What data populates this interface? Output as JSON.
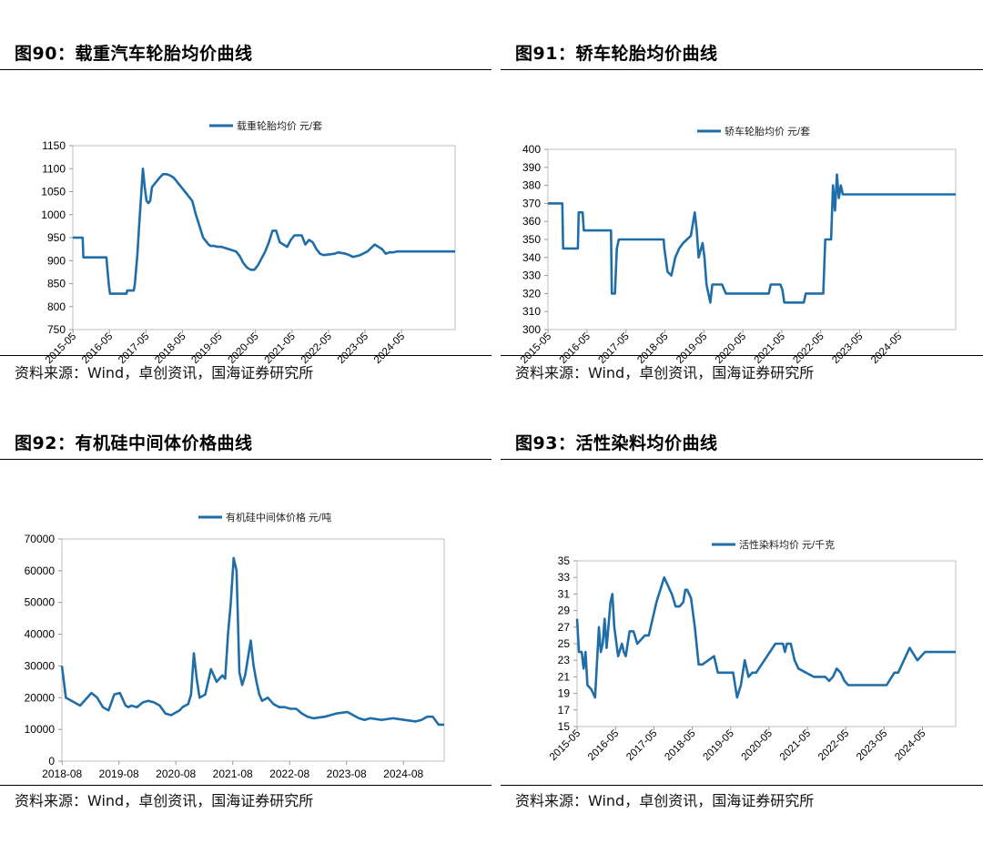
{
  "panels": [
    {
      "title": "图90：载重汽车轮胎均价曲线",
      "source": "资料来源：Wind，卓创资讯，国海证券研究所",
      "chart_data": {
        "type": "line",
        "legend": "载重轮胎均价 元/套",
        "legend_position": "top-center",
        "series_color": "#1f6ea8",
        "grid": false,
        "x_ticks": [
          "2015-05",
          "2016-05",
          "2017-05",
          "2018-05",
          "2019-05",
          "2020-05",
          "2021-05",
          "2022-05",
          "2023-05",
          "2024-05"
        ],
        "x_range": [
          2015.33,
          2025.8
        ],
        "y_ticks": [
          750,
          800,
          850,
          900,
          950,
          1000,
          1050,
          1100,
          1150
        ],
        "ylim": [
          750,
          1150
        ],
        "x": [
          2015.33,
          2015.6,
          2015.62,
          2016.25,
          2016.28,
          2016.32,
          2016.35,
          2016.4,
          2016.8,
          2016.82,
          2017.0,
          2017.03,
          2017.1,
          2017.15,
          2017.2,
          2017.25,
          2017.3,
          2017.35,
          2017.4,
          2017.45,
          2017.5,
          2017.6,
          2017.7,
          2017.8,
          2017.9,
          2018.0,
          2018.1,
          2018.2,
          2018.3,
          2018.4,
          2018.5,
          2018.6,
          2018.7,
          2018.8,
          2018.9,
          2019.0,
          2019.05,
          2019.1,
          2019.2,
          2019.3,
          2019.4,
          2019.6,
          2019.8,
          2019.9,
          2020.0,
          2020.1,
          2020.2,
          2020.3,
          2020.4,
          2020.6,
          2020.7,
          2020.8,
          2020.9,
          2021.0,
          2021.1,
          2021.2,
          2021.3,
          2021.4,
          2021.6,
          2021.7,
          2021.8,
          2021.9,
          2022.0,
          2022.1,
          2022.2,
          2022.5,
          2022.6,
          2022.8,
          2022.9,
          2023.0,
          2023.2,
          2023.4,
          2023.6,
          2023.8,
          2023.9,
          2024.0,
          2024.1,
          2024.2,
          2024.3,
          2024.5,
          2024.7,
          2025.8
        ],
        "y": [
          950,
          950,
          907,
          907,
          880,
          845,
          828,
          828,
          828,
          835,
          835,
          850,
          915,
          980,
          1040,
          1100,
          1060,
          1030,
          1025,
          1030,
          1060,
          1070,
          1080,
          1088,
          1088,
          1085,
          1080,
          1070,
          1060,
          1050,
          1040,
          1030,
          1000,
          975,
          950,
          940,
          935,
          932,
          932,
          930,
          930,
          925,
          920,
          910,
          895,
          885,
          880,
          880,
          890,
          920,
          940,
          965,
          965,
          940,
          935,
          930,
          945,
          955,
          955,
          935,
          945,
          940,
          925,
          915,
          912,
          915,
          918,
          915,
          912,
          908,
          912,
          920,
          935,
          925,
          915,
          918,
          918,
          920,
          920,
          920,
          920,
          920
        ]
      }
    },
    {
      "title": "图91：轿车轮胎均价曲线",
      "source": "资料来源：Wind，卓创资讯，国海证券研究所",
      "chart_data": {
        "type": "line",
        "legend": "轿车轮胎均价 元/套",
        "legend_position": "top-center",
        "series_color": "#1f6ea8",
        "grid": false,
        "x_ticks": [
          "2015-05",
          "2016-05",
          "2017-05",
          "2018-05",
          "2019-05",
          "2020-05",
          "2021-05",
          "2022-05",
          "2023-05",
          "2024-05"
        ],
        "x_range": [
          2015.33,
          2025.8
        ],
        "y_ticks": [
          300,
          310,
          320,
          330,
          340,
          350,
          360,
          370,
          380,
          390,
          400
        ],
        "ylim": [
          300,
          400
        ],
        "x": [
          2015.33,
          2015.7,
          2015.72,
          2016.1,
          2016.12,
          2016.22,
          2016.25,
          2016.95,
          2016.97,
          2017.05,
          2017.1,
          2017.15,
          2017.2,
          2017.3,
          2018.3,
          2018.32,
          2018.4,
          2018.5,
          2018.6,
          2018.7,
          2018.8,
          2018.9,
          2019.0,
          2019.1,
          2019.15,
          2019.2,
          2019.3,
          2019.35,
          2019.4,
          2019.45,
          2019.5,
          2019.55,
          2019.6,
          2019.65,
          2019.7,
          2019.8,
          2019.9,
          2020.2,
          2020.25,
          2020.3,
          2021.0,
          2021.05,
          2021.3,
          2021.35,
          2021.4,
          2021.9,
          2021.95,
          2022.4,
          2022.45,
          2022.6,
          2022.65,
          2022.7,
          2022.75,
          2022.8,
          2022.85,
          2022.9,
          2023.0,
          2023.05,
          2023.2,
          2025.8
        ],
        "y": [
          370,
          370,
          345,
          345,
          365,
          365,
          355,
          355,
          320,
          320,
          345,
          350,
          350,
          350,
          350,
          345,
          332,
          330,
          340,
          345,
          348,
          350,
          352,
          365,
          355,
          340,
          348,
          340,
          325,
          320,
          315,
          325,
          325,
          325,
          325,
          325,
          320,
          320,
          320,
          320,
          320,
          325,
          325,
          322,
          315,
          315,
          320,
          320,
          350,
          350,
          380,
          366,
          386,
          373,
          380,
          375,
          375,
          375,
          375,
          375
        ]
      }
    },
    {
      "title": "图92：有机硅中间体价格曲线",
      "source": "资料来源：Wind，卓创资讯，国海证券研究所",
      "chart_data": {
        "type": "line",
        "legend": "有机硅中间体价格 元/吨",
        "legend_position": "top-center",
        "series_color": "#1f6ea8",
        "grid": false,
        "x_ticks": [
          "2018-08",
          "2019-08",
          "2020-08",
          "2021-08",
          "2022-08",
          "2023-08",
          "2024-08"
        ],
        "x_range": [
          2018.58,
          2025.3
        ],
        "y_ticks": [
          0,
          10000,
          20000,
          30000,
          40000,
          50000,
          60000,
          70000
        ],
        "ylim": [
          0,
          70000
        ],
        "x": [
          2018.58,
          2018.65,
          2018.7,
          2018.8,
          2018.9,
          2019.0,
          2019.1,
          2019.2,
          2019.3,
          2019.4,
          2019.5,
          2019.6,
          2019.7,
          2019.75,
          2019.8,
          2019.9,
          2020.0,
          2020.1,
          2020.2,
          2020.3,
          2020.4,
          2020.5,
          2020.6,
          2020.65,
          2020.7,
          2020.75,
          2020.8,
          2020.85,
          2020.9,
          2020.95,
          2021.0,
          2021.1,
          2021.2,
          2021.3,
          2021.4,
          2021.45,
          2021.5,
          2021.55,
          2021.6,
          2021.65,
          2021.7,
          2021.75,
          2021.8,
          2021.9,
          2021.95,
          2022.0,
          2022.05,
          2022.1,
          2022.2,
          2022.3,
          2022.4,
          2022.5,
          2022.6,
          2022.7,
          2022.8,
          2022.9,
          2023.0,
          2023.2,
          2023.4,
          2023.6,
          2023.8,
          2023.9,
          2024.0,
          2024.2,
          2024.4,
          2024.6,
          2024.8,
          2024.9,
          2025.0,
          2025.1,
          2025.2,
          2025.3
        ],
        "y": [
          30000,
          20000,
          19500,
          18500,
          17500,
          19500,
          21500,
          20000,
          17000,
          16000,
          21000,
          21500,
          17500,
          17000,
          17500,
          17000,
          18500,
          19000,
          18500,
          17500,
          15000,
          14500,
          15500,
          16000,
          17000,
          17500,
          18000,
          21000,
          34000,
          26000,
          20000,
          21000,
          29000,
          25000,
          27000,
          26000,
          40000,
          50000,
          64000,
          60000,
          28000,
          24000,
          27000,
          38000,
          30000,
          25000,
          21000,
          19000,
          20000,
          18000,
          17000,
          17000,
          16500,
          16500,
          15000,
          14000,
          13500,
          14000,
          15000,
          15500,
          13500,
          13000,
          13500,
          13000,
          13500,
          13000,
          12500,
          13000,
          14000,
          14000,
          11500,
          11500
        ]
      }
    },
    {
      "title": "图93：活性染料均价曲线",
      "source": "资料来源：Wind，卓创资讯，国海证券研究所",
      "chart_data": {
        "type": "line",
        "legend": "活性染料均价 元/千克",
        "legend_position": "top-center",
        "series_color": "#1f6ea8",
        "grid": false,
        "x_ticks": [
          "2015-05",
          "2016-05",
          "2017-05",
          "2018-05",
          "2019-05",
          "2020-05",
          "2021-05",
          "2022-05",
          "2023-05",
          "2024-05"
        ],
        "x_range": [
          2015.33,
          2025.2
        ],
        "y_ticks": [
          15,
          17,
          19,
          21,
          23,
          25,
          27,
          29,
          31,
          33,
          35
        ],
        "ylim": [
          15,
          35
        ],
        "x": [
          2015.33,
          2015.38,
          2015.45,
          2015.5,
          2015.55,
          2015.6,
          2015.7,
          2015.8,
          2015.9,
          2015.95,
          2016.0,
          2016.05,
          2016.1,
          2016.2,
          2016.25,
          2016.3,
          2016.4,
          2016.5,
          2016.55,
          2016.6,
          2016.7,
          2016.8,
          2016.9,
          2017.1,
          2017.2,
          2017.4,
          2017.5,
          2017.6,
          2017.8,
          2017.9,
          2018.0,
          2018.1,
          2018.15,
          2018.2,
          2018.3,
          2018.4,
          2018.5,
          2018.6,
          2018.9,
          2019.0,
          2019.2,
          2019.25,
          2019.3,
          2019.4,
          2019.5,
          2019.6,
          2019.7,
          2019.8,
          2019.9,
          2020.0,
          2020.5,
          2020.7,
          2020.75,
          2020.8,
          2020.9,
          2020.95,
          2021.0,
          2021.1,
          2021.5,
          2021.6,
          2021.7,
          2021.8,
          2021.9,
          2022.0,
          2022.1,
          2022.2,
          2022.3,
          2022.4,
          2023.0,
          2023.2,
          2023.4,
          2023.6,
          2023.65,
          2023.7,
          2024.0,
          2024.2,
          2024.4,
          2024.6,
          2024.8,
          2024.95,
          2025.0,
          2025.05,
          2025.1,
          2025.2
        ],
        "y": [
          28,
          24,
          24,
          22,
          24,
          20,
          19.5,
          18.5,
          27,
          24,
          25,
          28,
          24.5,
          30,
          31,
          27,
          23.5,
          25,
          24,
          23.5,
          26.5,
          26.5,
          25,
          26,
          26,
          30,
          31.5,
          33,
          31,
          29.5,
          29.5,
          30,
          31.5,
          31.5,
          30.5,
          27,
          22.5,
          22.5,
          23.5,
          21.5,
          21.5,
          21.5,
          21.5,
          21.5,
          18.5,
          20,
          23,
          21,
          21.5,
          21.5,
          25,
          25,
          24,
          25,
          25,
          24,
          23,
          22,
          21,
          21,
          21,
          21,
          20.5,
          21,
          22,
          21.5,
          20.5,
          20,
          20,
          20,
          20,
          21.5,
          21.5,
          21.5,
          24.5,
          23,
          24,
          24,
          24,
          24,
          24,
          24,
          24,
          24
        ]
      }
    }
  ]
}
